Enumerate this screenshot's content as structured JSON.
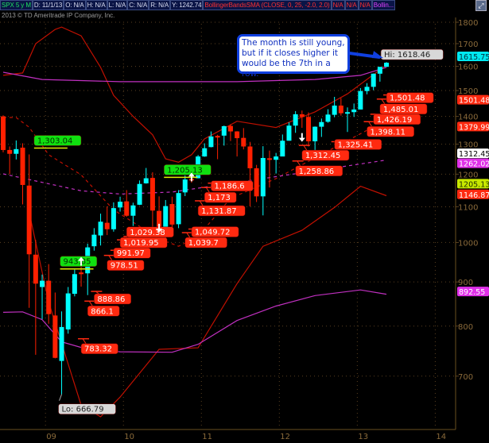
{
  "header": {
    "symbol": "SPX 5 y M",
    "date": "D: 11/1/13",
    "open": "O: N/A",
    "high": "H: N/A",
    "low": "L: N/A",
    "close": "C: N/A",
    "range": "R: N/A",
    "y_value": "Y: 1242.74",
    "study": "BollingerBandsSMA (CLOSE, 0, 25, -2.0, 2.0)",
    "study_values": [
      "N/A",
      "N/A",
      "N/A"
    ],
    "study2": "Bollin...",
    "maximize_icon": "expand-icon"
  },
  "copyright": "2013 © TD Ameritrade IP Company, Inc.",
  "callout": "The month is still young, but if it closes higher it would be the 7th in a row.",
  "colors": {
    "up": "#00ffff",
    "down": "#ff2000",
    "band": "#c01000",
    "envelope": "#c030c0",
    "grid": "#5a4020",
    "axis_text": "#8a6a3a",
    "callout_border": "#1040e0"
  },
  "chart_data": {
    "type": "candlestick",
    "symbol": "SPX",
    "period": "monthly",
    "y_scale": "log",
    "ylim": [
      640,
      1850
    ],
    "y_ticks": [
      1800,
      1700,
      1600,
      1500,
      1400,
      1300,
      1200,
      1100,
      1000,
      900,
      800,
      700
    ],
    "x_ticks": [
      {
        "label": "09",
        "date": "2009-01"
      },
      {
        "label": "10",
        "date": "2010-01"
      },
      {
        "label": "11",
        "date": "2011-01"
      },
      {
        "label": "12",
        "date": "2012-01"
      },
      {
        "label": "13",
        "date": "2013-01"
      },
      {
        "label": "14",
        "date": "2014-01"
      }
    ],
    "grid": true,
    "candles": [
      [
        "2008-06",
        1400,
        1404,
        1272,
        1280
      ],
      [
        "2008-07",
        1280,
        1292,
        1200,
        1267
      ],
      [
        "2008-08",
        1267,
        1313,
        1248,
        1283
      ],
      [
        "2008-09",
        1288,
        1303.04,
        1107,
        1166
      ],
      [
        "2008-10",
        1164,
        1265,
        840,
        969
      ],
      [
        "2008-11",
        968,
        1007,
        741,
        896
      ],
      [
        "2008-12",
        888,
        918,
        815,
        903
      ],
      [
        "2009-01",
        903,
        943.85,
        805,
        826
      ],
      [
        "2009-02",
        823,
        875,
        734,
        735
      ],
      [
        "2009-03",
        729,
        832,
        666.79,
        798
      ],
      [
        "2009-04",
        793,
        888,
        784,
        873
      ],
      [
        "2009-05",
        872,
        930,
        866.1,
        919
      ],
      [
        "2009-06",
        923,
        956,
        888.86,
        919
      ],
      [
        "2009-07",
        921,
        997,
        869,
        987
      ],
      [
        "2009-08",
        990,
        1039,
        978.51,
        1021
      ],
      [
        "2009-09",
        1019,
        1080,
        991.97,
        1057
      ],
      [
        "2009-10",
        1054,
        1101,
        1020,
        1036
      ],
      [
        "2009-11",
        1036,
        1113,
        1029.38,
        1096
      ],
      [
        "2009-12",
        1098,
        1130,
        1086,
        1115
      ],
      [
        "2010-01",
        1116,
        1150,
        1071,
        1074
      ],
      [
        "2010-02",
        1074,
        1112,
        1045,
        1104
      ],
      [
        "2010-03",
        1106,
        1180,
        1105,
        1169
      ],
      [
        "2010-04",
        1171,
        1220,
        1170,
        1187
      ],
      [
        "2010-05",
        1188,
        1206,
        1040,
        1089
      ],
      [
        "2010-06",
        1088,
        1131,
        1028,
        1031
      ],
      [
        "2010-07",
        1032,
        1120,
        1011,
        1102
      ],
      [
        "2010-08",
        1108,
        1130,
        1040,
        1049
      ],
      [
        "2010-09",
        1050,
        1150,
        1039,
        1141
      ],
      [
        "2010-10",
        1143,
        1196,
        1131.87,
        1183
      ],
      [
        "2010-11",
        1185,
        1228,
        1173,
        1181
      ],
      [
        "2010-12",
        1187,
        1263,
        1186.6,
        1258
      ],
      [
        "2011-01",
        1258,
        1303,
        1257,
        1286
      ],
      [
        "2011-02",
        1290,
        1345,
        1289,
        1327
      ],
      [
        "2011-03",
        1329,
        1333,
        1249,
        1326
      ],
      [
        "2011-04",
        1330,
        1366,
        1295,
        1364
      ],
      [
        "2011-05",
        1365,
        1371,
        1311,
        1345
      ],
      [
        "2011-06",
        1345,
        1346,
        1258,
        1321
      ],
      [
        "2011-07",
        1322,
        1357,
        1282,
        1292
      ],
      [
        "2011-08",
        1292,
        1308,
        1101,
        1219
      ],
      [
        "2011-09",
        1219,
        1230,
        1114,
        1131
      ],
      [
        "2011-10",
        1131,
        1293,
        1075,
        1253
      ],
      [
        "2011-11",
        1252,
        1278,
        1158,
        1247
      ],
      [
        "2011-12",
        1247,
        1270,
        1202,
        1258
      ],
      [
        "2012-01",
        1258,
        1334,
        1258.86,
        1312
      ],
      [
        "2012-02",
        1312,
        1378,
        1312.45,
        1366
      ],
      [
        "2012-03",
        1366,
        1420,
        1340,
        1408
      ],
      [
        "2012-04",
        1408,
        1422,
        1358,
        1398
      ],
      [
        "2012-05",
        1398,
        1415,
        1292,
        1310
      ],
      [
        "2012-06",
        1310,
        1363,
        1267,
        1362
      ],
      [
        "2012-07",
        1362,
        1392,
        1325.41,
        1379
      ],
      [
        "2012-08",
        1380,
        1427,
        1377,
        1407
      ],
      [
        "2012-09",
        1406,
        1475,
        1397,
        1441
      ],
      [
        "2012-10",
        1441,
        1470,
        1403,
        1412
      ],
      [
        "2012-11",
        1412,
        1434,
        1343,
        1416
      ],
      [
        "2012-12",
        1416,
        1449,
        1398.11,
        1426
      ],
      [
        "2013-01",
        1426,
        1510,
        1426.19,
        1498
      ],
      [
        "2013-02",
        1498,
        1530,
        1485.01,
        1515
      ],
      [
        "2013-03",
        1515,
        1570,
        1501.48,
        1569
      ],
      [
        "2013-04",
        1569,
        1597,
        1536,
        1598
      ],
      [
        "2013-05",
        1598,
        1618.46,
        1598,
        1615.75
      ]
    ],
    "lines": [
      {
        "name": "BollingerBandsSMA upper",
        "style": "solid",
        "color": "#c01000",
        "points": [
          [
            "2008-06",
            1562
          ],
          [
            "2008-09",
            1572
          ],
          [
            "2008-11",
            1700
          ],
          [
            "2009-02",
            1766
          ],
          [
            "2009-03",
            1777
          ],
          [
            "2009-06",
            1736
          ],
          [
            "2009-09",
            1596
          ],
          [
            "2009-11",
            1481
          ],
          [
            "2010-02",
            1400
          ],
          [
            "2010-05",
            1333
          ],
          [
            "2010-07",
            1250
          ],
          [
            "2010-09",
            1239
          ],
          [
            "2010-11",
            1264
          ],
          [
            "2011-01",
            1319
          ],
          [
            "2011-04",
            1356
          ],
          [
            "2011-06",
            1382
          ],
          [
            "2011-12",
            1359
          ],
          [
            "2012-06",
            1417
          ],
          [
            "2012-11",
            1487
          ],
          [
            "2013-05",
            1606
          ]
        ]
      },
      {
        "name": "BollingerBandsSMA lower",
        "style": "solid",
        "color": "#c01000",
        "points": [
          [
            "2008-10",
            1084
          ],
          [
            "2009-01",
            853
          ],
          [
            "2009-06",
            648
          ],
          [
            "2009-09",
            628
          ],
          [
            "2009-12",
            662
          ],
          [
            "2010-06",
            752
          ],
          [
            "2010-12",
            755
          ],
          [
            "2011-06",
            896
          ],
          [
            "2011-10",
            990
          ],
          [
            "2012-04",
            1033
          ],
          [
            "2012-09",
            1098
          ],
          [
            "2013-01",
            1162
          ],
          [
            "2013-05",
            1133
          ]
        ]
      },
      {
        "name": "upper envelope",
        "style": "solid",
        "color": "#c030c0",
        "points": [
          [
            "2008-06",
            1575
          ],
          [
            "2008-12",
            1545
          ],
          [
            "2009-12",
            1536
          ],
          [
            "2011-06",
            1536
          ],
          [
            "2012-06",
            1545
          ],
          [
            "2013-01",
            1562
          ],
          [
            "2013-05",
            1596
          ]
        ]
      },
      {
        "name": "lower envelope",
        "style": "solid",
        "color": "#c030c0",
        "points": [
          [
            "2008-06",
            830
          ],
          [
            "2008-09",
            831
          ],
          [
            "2008-12",
            814
          ],
          [
            "2009-03",
            767
          ],
          [
            "2009-07",
            752
          ],
          [
            "2009-12",
            747
          ],
          [
            "2010-08",
            746
          ],
          [
            "2010-12",
            762
          ],
          [
            "2011-06",
            812
          ],
          [
            "2011-12",
            844
          ],
          [
            "2012-06",
            868
          ],
          [
            "2013-01",
            881
          ],
          [
            "2013-05",
            871
          ]
        ]
      },
      {
        "name": "middle curve",
        "style": "dashed",
        "color": "#c01000",
        "points": [
          [
            "2008-06",
            1396
          ],
          [
            "2008-08",
            1396
          ],
          [
            "2008-10",
            1360
          ],
          [
            "2009-01",
            1264
          ],
          [
            "2009-06",
            1198
          ],
          [
            "2009-11",
            1091
          ],
          [
            "2010-06",
            1010
          ],
          [
            "2010-09",
            990
          ],
          [
            "2010-12",
            1016
          ],
          [
            "2011-05",
            1125
          ],
          [
            "2011-12",
            1186
          ],
          [
            "2013-02",
            1349
          ]
        ]
      },
      {
        "name": "middle trend",
        "style": "dashed",
        "color": "#c030c0",
        "points": [
          [
            "2008-06",
            1201
          ],
          [
            "2008-12",
            1174
          ],
          [
            "2009-06",
            1148
          ],
          [
            "2009-12",
            1138
          ],
          [
            "2010-08",
            1144
          ],
          [
            "2011-02",
            1162
          ],
          [
            "2011-12",
            1192
          ],
          [
            "2013-05",
            1246
          ]
        ]
      }
    ],
    "pivot_lows": [
      {
        "date": "2009-06",
        "text": "783.32"
      },
      {
        "date": "2009-07",
        "text": "866.1"
      },
      {
        "date": "2009-08",
        "text": "888.86"
      },
      {
        "date": "2009-10",
        "text": "978.51"
      },
      {
        "date": "2009-11",
        "text": "991.97"
      },
      {
        "date": "2009-12",
        "text": "1,019.95"
      },
      {
        "date": "2010-01",
        "text": "1,029.38"
      },
      {
        "date": "2010-10",
        "text": "1,039.7"
      },
      {
        "date": "2010-11",
        "text": "1,049.72"
      },
      {
        "date": "2010-12",
        "text": "1,131.87"
      },
      {
        "date": "2011-01",
        "text": "1,173"
      },
      {
        "date": "2011-02",
        "text": "1,186.6"
      },
      {
        "date": "2012-03",
        "text": "1,258.86"
      },
      {
        "date": "2012-04",
        "text": "1,312.45"
      },
      {
        "date": "2012-09",
        "text": "1,325.41"
      },
      {
        "date": "2013-02",
        "text": "1,398.11"
      },
      {
        "date": "2013-03",
        "text": "1,426.19"
      },
      {
        "date": "2013-04",
        "text": "1,485.01"
      },
      {
        "date": "2013-05",
        "text": "1,501.48"
      }
    ],
    "pivot_highs": [
      {
        "date": "2008-11",
        "text": "1,303.04"
      },
      {
        "date": "2009-03",
        "text": "943.85"
      },
      {
        "date": "2010-07",
        "text": "1,205.13"
      }
    ],
    "signals": [
      {
        "date": "2009-06",
        "dir": "up",
        "price": 950
      },
      {
        "date": "2010-06",
        "dir": "down",
        "price": 1040
      },
      {
        "date": "2010-11",
        "dir": "up",
        "price": 1190
      },
      {
        "date": "2012-04",
        "dir": "down",
        "price": 1325
      }
    ],
    "hi_label": {
      "date": "2013-05",
      "text": "Hi: 1618.46"
    },
    "lo_label": {
      "date": "2009-03",
      "text": "Lo: 666.79"
    },
    "price_markers": [
      {
        "text": "1615.75",
        "color": "#00e8f0",
        "fg": "#003040"
      },
      {
        "text": "1501.48",
        "color": "#ff2a10",
        "fg": "#ffffff"
      },
      {
        "text": "1379.99",
        "color": "#ff2a10",
        "fg": "#ffffff"
      },
      {
        "text": "1312.45",
        "color": "#ffffff",
        "fg": "#000000"
      },
      {
        "text": "1262.02",
        "color": "#e030e8",
        "fg": "#ffffff"
      },
      {
        "text": "1205.13",
        "color": "#c8e800",
        "fg": "#203000"
      },
      {
        "text": "1146.87",
        "color": "#ff2a10",
        "fg": "#ffffff"
      },
      {
        "text": "892.55",
        "color": "#e030e8",
        "fg": "#ffffff"
      }
    ]
  }
}
